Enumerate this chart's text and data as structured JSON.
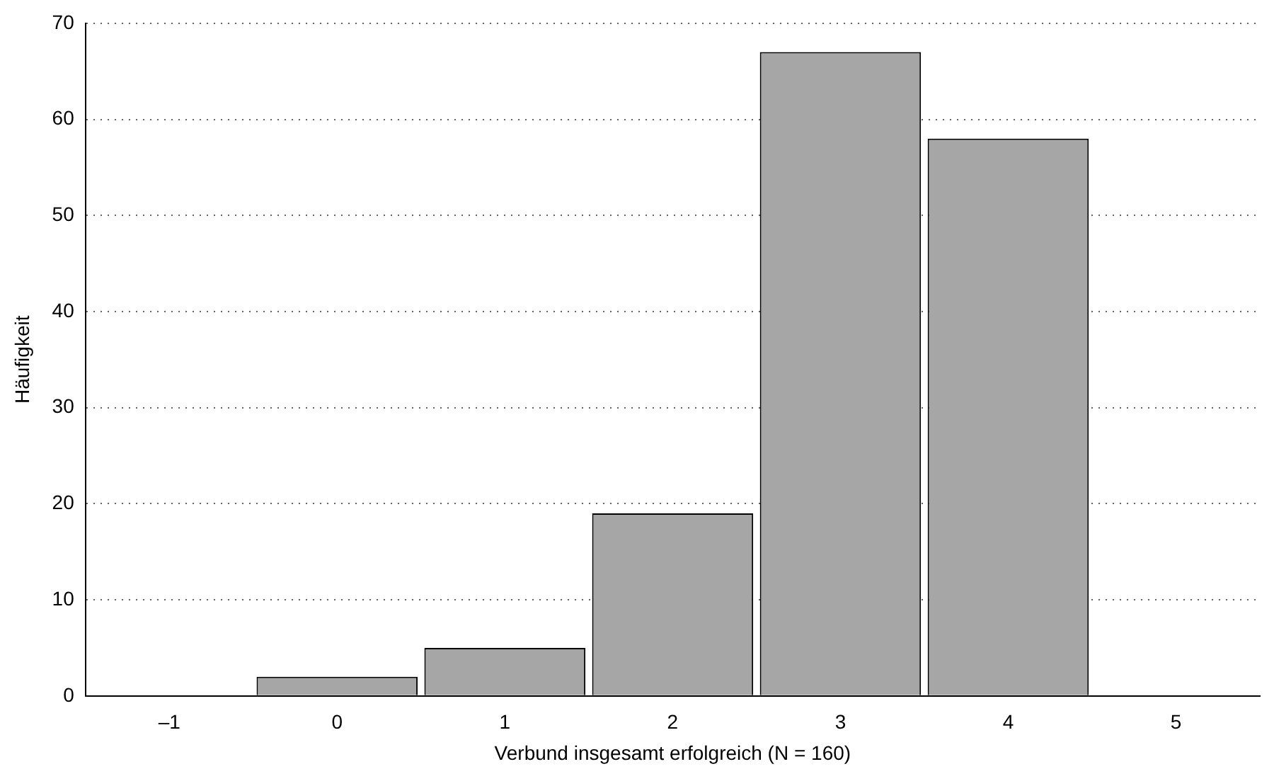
{
  "chart_data": {
    "type": "bar",
    "xlabel": "Verbund insgesamt erfolgreich (N = 160)",
    "ylabel": "Häufigkeit",
    "categories": [
      "–1",
      "0",
      "1",
      "2",
      "3",
      "4",
      "5"
    ],
    "values": [
      null,
      2,
      5,
      19,
      67,
      58,
      null
    ],
    "color": "#a6a6a6",
    "ylim": [
      0,
      70
    ],
    "yticks": [
      0,
      10,
      20,
      30,
      40,
      50,
      60,
      70
    ],
    "grid": "y",
    "line_style": "dotted",
    "legend": false
  }
}
